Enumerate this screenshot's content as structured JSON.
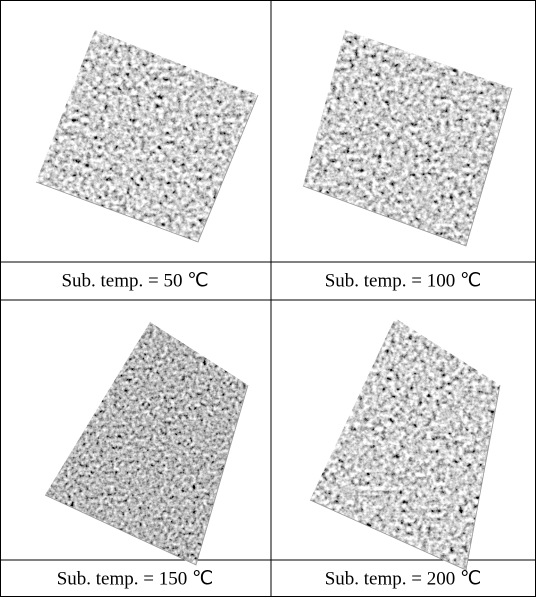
{
  "panels": [
    {
      "caption": "Sub. temp. = 50 ℃"
    },
    {
      "caption": "Sub. temp. = 100 ℃"
    },
    {
      "caption": "Sub. temp. = 150 ℃"
    },
    {
      "caption": "Sub. temp. = 200 ℃"
    }
  ]
}
